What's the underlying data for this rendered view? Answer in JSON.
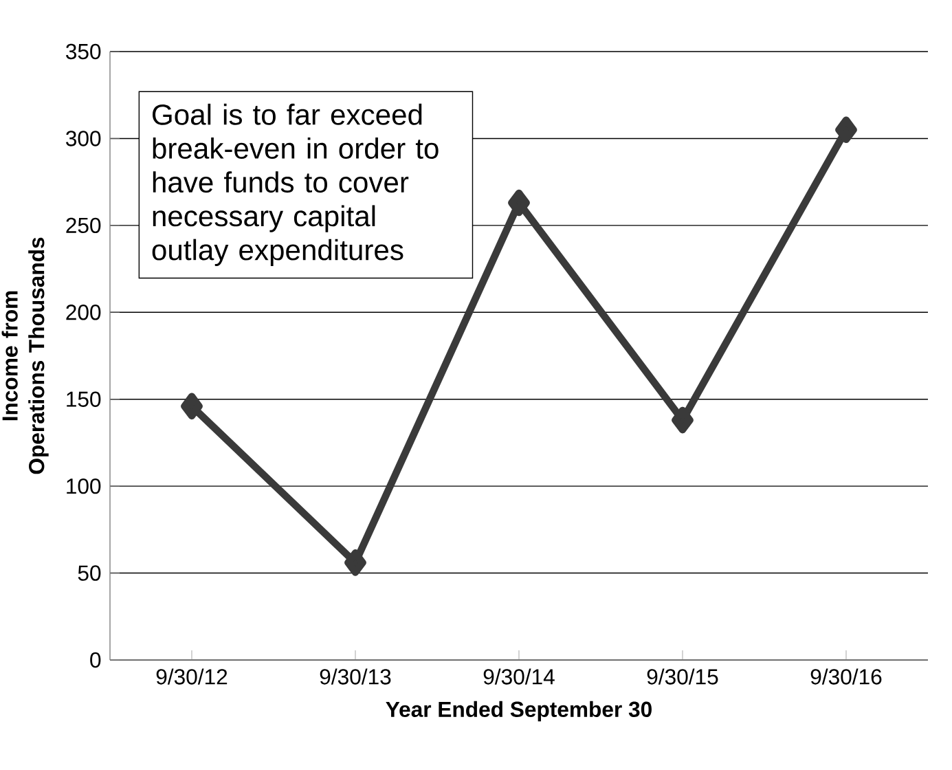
{
  "chart_data": {
    "type": "line",
    "xlabel": "Year Ended September 30",
    "ylabel": "Income from Operations Thousands",
    "categories": [
      "9/30/12",
      "9/30/13",
      "9/30/14",
      "9/30/15",
      "9/30/16"
    ],
    "series": [
      {
        "color": "#3a3a3a",
        "values": [
          146,
          56,
          263,
          138,
          305
        ]
      }
    ],
    "ylim": [
      0,
      350
    ],
    "yticks": [
      0,
      50,
      100,
      150,
      200,
      250,
      300,
      350
    ],
    "grid": "y",
    "marker": "diamond",
    "line_style": "solid",
    "annotations": [
      "Goal is to far exceed break-even in order to have funds to cover necessary capital outlay expenditures"
    ]
  }
}
